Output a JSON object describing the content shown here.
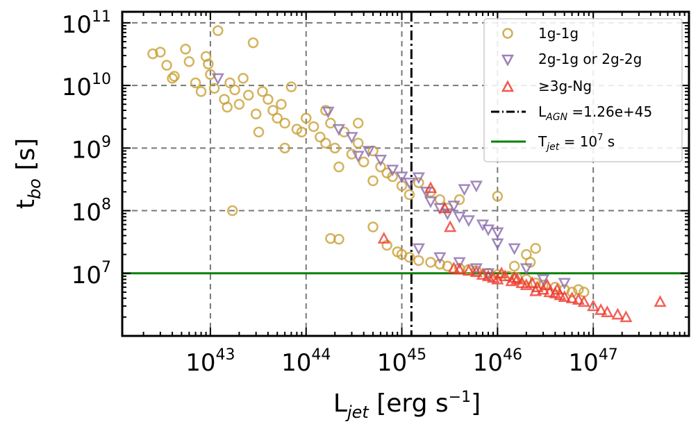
{
  "chart_data": {
    "type": "scatter",
    "xscale": "log",
    "yscale": "log",
    "xlim": [
      1.2e+42,
      1e+48
    ],
    "ylim": [
      1000000.0,
      150000000000.0
    ],
    "x_ticks": [
      {
        "base": "10",
        "exp": "43",
        "value": 1e+43
      },
      {
        "base": "10",
        "exp": "44",
        "value": 1e+44
      },
      {
        "base": "10",
        "exp": "45",
        "value": 1e+45
      },
      {
        "base": "10",
        "exp": "46",
        "value": 1e+46
      },
      {
        "base": "10",
        "exp": "47",
        "value": 1e+47
      }
    ],
    "y_ticks": [
      {
        "base": "10",
        "exp": "7",
        "value": 10000000.0
      },
      {
        "base": "10",
        "exp": "8",
        "value": 100000000.0
      },
      {
        "base": "10",
        "exp": "9",
        "value": 1000000000.0
      },
      {
        "base": "10",
        "exp": "10",
        "value": 10000000000.0
      },
      {
        "base": "10",
        "exp": "11",
        "value": 100000000000.0
      }
    ],
    "xlabel": {
      "main": "L",
      "sub": "jet",
      "rest1": " [erg s",
      "sup": "−1",
      "rest2": "]"
    },
    "ylabel": {
      "main": "t",
      "sub": "bo",
      "rest": " [s]"
    },
    "grid": true,
    "legend_position": "top-right",
    "vline": {
      "name": "L_AGN",
      "x": 1.26e+45,
      "label_main": "L",
      "label_sub": "AGN",
      "label_rest": " =1.26e+45",
      "color": "#000000"
    },
    "hline": {
      "name": "T_jet",
      "y": 10000000.0,
      "label_main": "T",
      "label_sub": "jet",
      "label_mid": " = 10",
      "label_sup": "7",
      "label_rest": " s",
      "color": "#008000"
    },
    "series": [
      {
        "name": "1g-1g",
        "marker": "circle",
        "color": "#C9A036",
        "points": [
          [
            2.5e+42,
            32000000000.0
          ],
          [
            3e+42,
            34000000000.0
          ],
          [
            3.5e+42,
            21000000000.0
          ],
          [
            4e+42,
            13000000000.0
          ],
          [
            4.2e+42,
            14000000000.0
          ],
          [
            5.5e+42,
            38000000000.0
          ],
          [
            6e+42,
            24000000000.0
          ],
          [
            7e+42,
            11000000000.0
          ],
          [
            8e+42,
            8000000000.0
          ],
          [
            9e+42,
            29000000000.0
          ],
          [
            9.5e+42,
            22000000000.0
          ],
          [
            1e+43,
            15000000000.0
          ],
          [
            1.1e+43,
            9000000000.0
          ],
          [
            1.2e+43,
            75000000000.0
          ],
          [
            1.4e+43,
            6000000000.0
          ],
          [
            1.6e+43,
            11000000000.0
          ],
          [
            1.8e+43,
            8500000000.0
          ],
          [
            2e+43,
            5000000000.0
          ],
          [
            2.2e+43,
            13000000000.0
          ],
          [
            2.5e+43,
            7000000000.0
          ],
          [
            2.8e+43,
            48000000000.0
          ],
          [
            3e+43,
            3500000000.0
          ],
          [
            3.5e+43,
            8000000000.0
          ],
          [
            4e+43,
            6000000000.0
          ],
          [
            4.5e+43,
            4000000000.0
          ],
          [
            5e+43,
            3000000000.0
          ],
          [
            5.5e+43,
            5000000000.0
          ],
          [
            6e+43,
            2500000000.0
          ],
          [
            7e+43,
            9500000000.0
          ],
          [
            8e+43,
            2000000000.0
          ],
          [
            9e+43,
            1800000000.0
          ],
          [
            1e+44,
            3000000000.0
          ],
          [
            1.2e+44,
            2200000000.0
          ],
          [
            1.4e+44,
            1500000000.0
          ],
          [
            1.6e+44,
            1200000000.0
          ],
          [
            1.8e+44,
            2500000000.0
          ],
          [
            2e+44,
            1000000000.0
          ],
          [
            2.5e+44,
            1800000000.0
          ],
          [
            3e+44,
            800000000.0
          ],
          [
            3.5e+44,
            1200000000.0
          ],
          [
            4e+44,
            600000000.0
          ],
          [
            5e+44,
            900000000.0
          ],
          [
            6e+44,
            500000000.0
          ],
          [
            7e+44,
            400000000.0
          ],
          [
            8e+44,
            350000000.0
          ],
          [
            1e+45,
            250000000.0
          ],
          [
            1.2e+45,
            180000000.0
          ],
          [
            1.5e+45,
            280000000.0
          ],
          [
            2e+45,
            200000000.0
          ],
          [
            2.5e+45,
            150000000.0
          ],
          [
            3e+45,
            110000000.0
          ],
          [
            4e+45,
            150000000.0
          ],
          [
            1.6e+44,
            4000000000.0
          ],
          [
            2.2e+44,
            500000000.0
          ],
          [
            6e+43,
            1000000000.0
          ],
          [
            1.7e+43,
            100000000.0
          ],
          [
            1.8e+44,
            36000000.0
          ],
          [
            2.2e+44,
            35000000.0
          ],
          [
            3.5e+44,
            2500000000.0
          ],
          [
            5e+44,
            300000000.0
          ],
          [
            1.5e+43,
            4500000000.0
          ],
          [
            3.2e+43,
            1800000000.0
          ],
          [
            1e+46,
            170000000.0
          ],
          [
            5e+44,
            55000000.0
          ],
          [
            7e+44,
            28000000.0
          ],
          [
            9e+44,
            22000000.0
          ],
          [
            1e+45,
            20000000.0
          ],
          [
            1.2e+45,
            18000000.0
          ],
          [
            1.5e+45,
            16000000.0
          ],
          [
            2e+45,
            15000000.0
          ],
          [
            2.5e+45,
            14000000.0
          ],
          [
            3e+45,
            13000000.0
          ],
          [
            4e+45,
            12000000.0
          ],
          [
            5e+45,
            11500000.0
          ],
          [
            6e+45,
            11000000.0
          ],
          [
            8e+45,
            10000000.0
          ],
          [
            1e+46,
            9500000.0
          ],
          [
            1.3e+46,
            9000000.0
          ],
          [
            1.6e+46,
            8500000.0
          ],
          [
            2e+46,
            8000000.0
          ],
          [
            2.5e+46,
            7000000.0
          ],
          [
            3e+46,
            6500000.0
          ],
          [
            4e+46,
            6000000.0
          ],
          [
            5e+46,
            5500000.0
          ],
          [
            6e+46,
            5000000.0
          ],
          [
            8e+46,
            5000000.0
          ],
          [
            2e+46,
            20000000.0
          ],
          [
            2.5e+46,
            25000000.0
          ],
          [
            2.2e+46,
            15000000.0
          ],
          [
            1.5e+46,
            13000000.0
          ],
          [
            7e+46,
            5500000.0
          ]
        ]
      },
      {
        "name": "2g-1g or 2g-2g",
        "marker": "triangle-down",
        "color": "#8A6AAE",
        "points": [
          [
            1.2e+43,
            13000000000.0
          ],
          [
            1.7e+44,
            3800000000.0
          ],
          [
            2.2e+44,
            2000000000.0
          ],
          [
            3e+44,
            1500000000.0
          ],
          [
            3.5e+44,
            750000000.0
          ],
          [
            4.5e+44,
            900000000.0
          ],
          [
            6e+44,
            650000000.0
          ],
          [
            8e+44,
            450000000.0
          ],
          [
            1e+45,
            350000000.0
          ],
          [
            1.2e+45,
            280000000.0
          ],
          [
            1.5e+45,
            340000000.0
          ],
          [
            1.8e+45,
            200000000.0
          ],
          [
            2e+45,
            140000000.0
          ],
          [
            2.5e+45,
            110000000.0
          ],
          [
            3e+45,
            90000000.0
          ],
          [
            3.5e+45,
            120000000.0
          ],
          [
            4e+45,
            80000000.0
          ],
          [
            5e+45,
            70000000.0
          ],
          [
            6e+45,
            250000000.0
          ],
          [
            7e+45,
            60000000.0
          ],
          [
            8e+45,
            50000000.0
          ],
          [
            1e+46,
            30000000.0
          ],
          [
            1.5e+46,
            25000000.0
          ],
          [
            1e+46,
            45000000.0
          ],
          [
            1.5e+45,
            25000000.0
          ],
          [
            2.5e+45,
            18000000.0
          ],
          [
            4e+45,
            15000000.0
          ],
          [
            6e+45,
            12000000.0
          ],
          [
            2e+46,
            12000000.0
          ],
          [
            3e+46,
            8000000.0
          ],
          [
            5e+46,
            7000000.0
          ],
          [
            8e+45,
            10000000.0
          ],
          [
            4.5e+45,
            220000000.0
          ]
        ]
      },
      {
        "name": "≥3g-Ng",
        "marker": "triangle-up",
        "color": "#EE3A2E",
        "points": [
          [
            2e+45,
            230000000.0
          ],
          [
            2.8e+45,
            110000000.0
          ],
          [
            3.2e+45,
            55000000.0
          ],
          [
            6.5e+44,
            36000000.0
          ],
          [
            3.5e+45,
            12000000.0
          ],
          [
            4e+45,
            11500000.0
          ],
          [
            5e+45,
            11000000.0
          ],
          [
            6e+45,
            10500000.0
          ],
          [
            7e+45,
            9500000.0
          ],
          [
            8e+45,
            9000000.0
          ],
          [
            9e+45,
            8500000.0
          ],
          [
            1e+46,
            8000000.0
          ],
          [
            1.2e+46,
            9000000.0
          ],
          [
            1.4e+46,
            7500000.0
          ],
          [
            1.6e+46,
            8000000.0
          ],
          [
            1.8e+46,
            7000000.0
          ],
          [
            2e+46,
            6500000.0
          ],
          [
            2.3e+46,
            7000000.0
          ],
          [
            2.6e+46,
            6000000.0
          ],
          [
            3e+46,
            5500000.0
          ],
          [
            3.5e+46,
            5000000.0
          ],
          [
            4e+46,
            4800000.0
          ],
          [
            4.5e+46,
            4500000.0
          ],
          [
            5e+46,
            4200000.0
          ],
          [
            6e+46,
            4000000.0
          ],
          [
            7e+46,
            3800000.0
          ],
          [
            8e+46,
            3500000.0
          ],
          [
            1e+47,
            3000000.0
          ],
          [
            1.2e+47,
            2600000.0
          ],
          [
            1.4e+47,
            2400000.0
          ],
          [
            1.8e+47,
            2200000.0
          ],
          [
            2.2e+47,
            2000000.0
          ],
          [
            2.5e+46,
            5200000.0
          ],
          [
            5e+47,
            3500000.0
          ],
          [
            1.1e+46,
            10000000.0
          ],
          [
            1.5e+46,
            8500000.0
          ],
          [
            3.3e+46,
            6500000.0
          ],
          [
            4.2e+46,
            5500000.0
          ]
        ]
      }
    ]
  }
}
